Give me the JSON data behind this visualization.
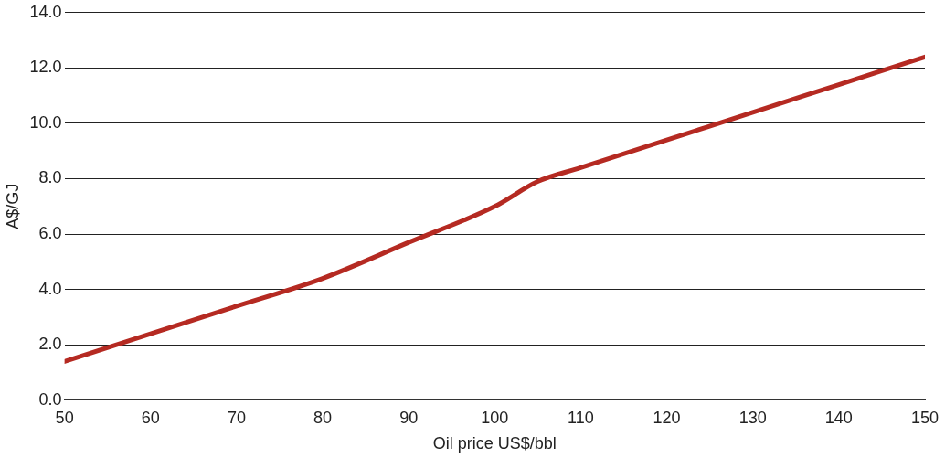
{
  "chart_data": {
    "type": "line",
    "xlabel": "Oil price US$/bbl",
    "ylabel": "A$/GJ",
    "x": [
      50,
      60,
      70,
      80,
      90,
      100,
      105,
      110,
      120,
      130,
      140,
      150
    ],
    "series": [
      {
        "color": "#b52a22",
        "values": [
          1.4,
          2.4,
          3.4,
          4.4,
          5.7,
          7.0,
          7.9,
          8.4,
          9.4,
          10.4,
          11.4,
          12.4
        ]
      }
    ],
    "xlim": [
      50,
      150
    ],
    "xticks": [
      50,
      60,
      70,
      80,
      90,
      100,
      110,
      120,
      130,
      140,
      150
    ],
    "ylim": [
      0,
      14
    ],
    "yticks": [
      {
        "value": 0,
        "label": "0.0"
      },
      {
        "value": 2,
        "label": "2.0"
      },
      {
        "value": 4,
        "label": "4.0"
      },
      {
        "value": 6,
        "label": "6.0"
      },
      {
        "value": 8,
        "label": "8.0"
      },
      {
        "value": 10,
        "label": "10.0"
      },
      {
        "value": 12,
        "label": "12.0"
      },
      {
        "value": 14,
        "label": "14.0"
      }
    ],
    "grid": "y",
    "legend": false,
    "marker": "none",
    "line_style": "solid"
  }
}
